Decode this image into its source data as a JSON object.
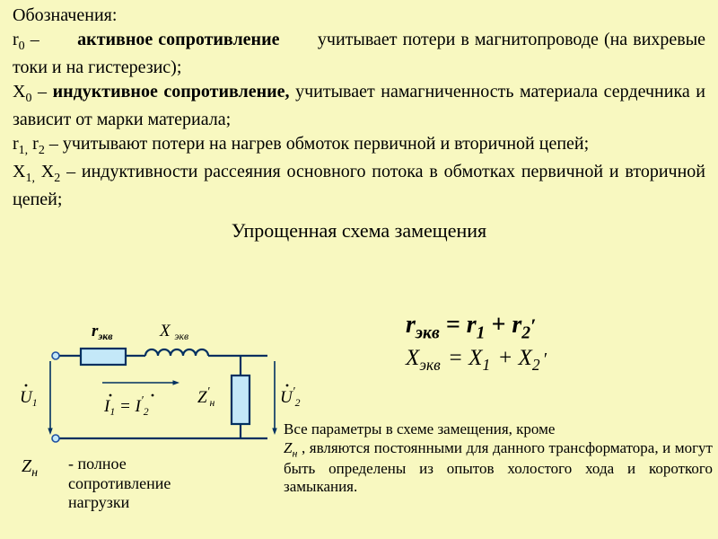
{
  "header": "Обозначения:",
  "line1_a": "r",
  "line1_sub": "0",
  "line1_b": " – ",
  "line1_bold": "активное сопротивление",
  "line1_c": " учитывает потери в магнитопроводе (на вихревые токи и на гистерезис);",
  "line2_a": "X",
  "line2_sub": "0",
  "line2_b": " – ",
  "line2_bold": "индуктивное сопротивление,",
  "line2_c": " учитывает намагниченность материала сердечника и зависит от марки материала;",
  "line3_a": "r",
  "line3_s1": "1,",
  "line3_b": " r",
  "line3_s2": "2",
  "line3_c": " – учитывают потери на нагрев обмоток первичной и вторичной цепей;",
  "line4_a": "X",
  "line4_s1": "1,",
  "line4_b": " X",
  "line4_s2": "2",
  "line4_c": " – индуктивности рассеяния основного потока в обмотках первичной и вторичной цепей;",
  "title2": "Упрощенная схема замещения",
  "eq1_lhs": "r",
  "eq1_lhs_sub": "экв",
  "eq1_mid": " = r",
  "eq1_r1sub": "1",
  "eq1_plus": " + r",
  "eq1_r2sub": "2",
  "eq1_prime": "′",
  "eq2_lhs": "X",
  "eq2_lhs_sub": "экв",
  "eq2_mid": " = X",
  "eq2_x1sub": "1",
  "eq2_plus": " + X",
  "eq2_x2sub": "2",
  "eq2_prime": "′",
  "bottom_a": "Все параметры в схеме замещения, кроме",
  "bottom_zn": "Z",
  "bottom_zn_sub": "н",
  "bottom_b": "        , являются постоянными для данного трансформатора, и могут быть определены из опытов холостого хода и короткого замыкания.",
  "zn_label": "Z",
  "zn_label_sub": "н",
  "zn_desc": "- полное сопротивление нагрузки",
  "circuit": {
    "stroke": "#003060",
    "stroke_width": 2.2,
    "term_radius": 4,
    "term_fill": "#c4e8f8",
    "term_stroke": "#2050a0",
    "box_fill": "#c4e8f8",
    "r_label": "r",
    "r_sub": "экв",
    "x_label": "X",
    "x_sub": "экв",
    "u1": "U",
    "u1_sub": "1",
    "u2": "U",
    "u2_sub": "2",
    "u2_prime": "′",
    "i1": "I",
    "i1_sub": "1",
    "i2": "I",
    "i2_sub": "2",
    "i_eq": " = ",
    "i_prime": "′",
    "zn": "Z",
    "zn_sub": "н",
    "zn_prime": "′",
    "label_fontsize": 19
  },
  "colors": {
    "bg": "#f8f8c0"
  }
}
